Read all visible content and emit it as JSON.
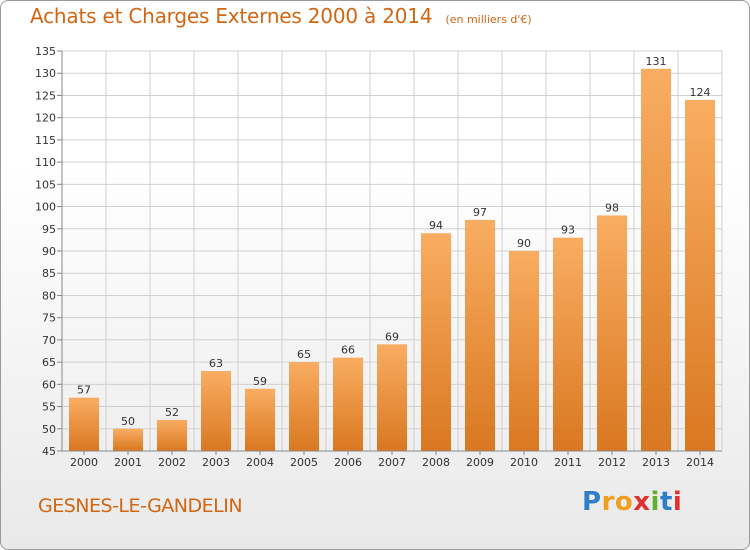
{
  "header": {
    "title": "Achats et Charges Externes 2000 à 2014",
    "subtitle": "(en milliers d'€)"
  },
  "footer": {
    "commune": "GESNES-LE-GANDELIN",
    "logo_letters": [
      "P",
      "r",
      "o",
      "x",
      "i",
      "t",
      "i"
    ],
    "logo_colors": [
      "#2f7fc8",
      "#f0a020",
      "#f0a020",
      "#e03030",
      "#60b030",
      "#2f7fc8",
      "#e03030"
    ]
  },
  "colors": {
    "bar_light": "#f9ad62",
    "bar_dark": "#d97820",
    "grid": "#d0d0d0",
    "axis_text": "#333333"
  },
  "chart_data": {
    "type": "bar",
    "title": "Achats et Charges Externes 2000 à 2014",
    "subtitle": "(en milliers d'€)",
    "xlabel": "",
    "ylabel": "",
    "categories": [
      "2000",
      "2001",
      "2002",
      "2003",
      "2004",
      "2005",
      "2006",
      "2007",
      "2008",
      "2009",
      "2010",
      "2011",
      "2012",
      "2013",
      "2014"
    ],
    "values": [
      57,
      50,
      52,
      63,
      59,
      65,
      66,
      69,
      94,
      97,
      90,
      93,
      98,
      131,
      124
    ],
    "ylim": [
      45,
      135
    ],
    "yticks": [
      45,
      50,
      55,
      60,
      65,
      70,
      75,
      80,
      85,
      90,
      95,
      100,
      105,
      110,
      115,
      120,
      125,
      130,
      135
    ],
    "grid": true,
    "data_labels": true
  }
}
